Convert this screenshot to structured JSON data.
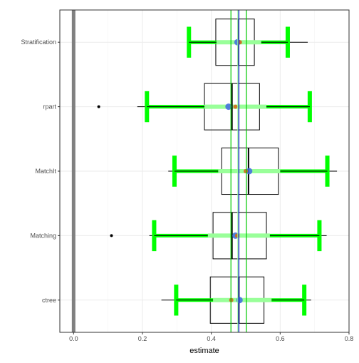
{
  "chart_data": {
    "type": "boxplot",
    "xlabel": "estimate",
    "ylabel": "",
    "xlim": [
      -0.04,
      0.8
    ],
    "x_ticks": [
      "0.0",
      "0.2",
      "0.4",
      "0.6",
      "0.8"
    ],
    "x_tick_values": [
      0.0,
      0.2,
      0.4,
      0.6,
      0.8
    ],
    "categories": [
      "Stratification",
      "rpart",
      "MatchIt",
      "Matching",
      "ctree"
    ],
    "grid": true,
    "colors": {
      "box": "#000000",
      "interval_outer": "#00ff00",
      "interval_inner": "#99ff99",
      "blue_point": "#4169e1",
      "orange_point": "#d2691e",
      "zero_line": "#808080",
      "vline_blue": "#0000cd",
      "vline_green": "#00cc00",
      "vline_lightgreen": "#99ff99"
    },
    "reference_lines": {
      "zero": 0.0,
      "blue": 0.48,
      "green": [
        0.457,
        0.502
      ],
      "light_green": 0.477
    },
    "boxes": [
      {
        "name": "Stratification",
        "whisker_low": 0.338,
        "q1": 0.413,
        "median": 0.478,
        "q3": 0.525,
        "whisker_high": 0.68,
        "outliers": [],
        "ci_outer": [
          0.335,
          0.622
        ],
        "ci_inner": [
          0.415,
          0.545
        ],
        "blue_point": 0.476,
        "orange_point": 0.483
      },
      {
        "name": "rpart",
        "whisker_low": 0.185,
        "q1": 0.38,
        "median": 0.46,
        "q3": 0.54,
        "whisker_high": 0.685,
        "outliers": [
          0.073
        ],
        "ci_outer": [
          0.213,
          0.686
        ],
        "ci_inner": [
          0.38,
          0.56
        ],
        "blue_point": 0.45,
        "orange_point": 0.47
      },
      {
        "name": "MatchIt",
        "whisker_low": 0.275,
        "q1": 0.43,
        "median": 0.508,
        "q3": 0.595,
        "whisker_high": 0.765,
        "outliers": [],
        "ci_outer": [
          0.293,
          0.737
        ],
        "ci_inner": [
          0.42,
          0.6
        ],
        "blue_point": 0.51,
        "orange_point": 0.5
      },
      {
        "name": "Matching",
        "whisker_low": 0.22,
        "q1": 0.405,
        "median": 0.46,
        "q3": 0.56,
        "whisker_high": 0.735,
        "outliers": [
          0.11
        ],
        "ci_outer": [
          0.234,
          0.714
        ],
        "ci_inner": [
          0.39,
          0.57
        ],
        "blue_point": 0.47,
        "orange_point": 0.475
      },
      {
        "name": "ctree",
        "whisker_low": 0.255,
        "q1": 0.397,
        "median": 0.48,
        "q3": 0.553,
        "whisker_high": 0.69,
        "outliers": [],
        "ci_outer": [
          0.298,
          0.67
        ],
        "ci_inner": [
          0.405,
          0.575
        ],
        "blue_point": 0.482,
        "orange_point": 0.458
      }
    ]
  }
}
